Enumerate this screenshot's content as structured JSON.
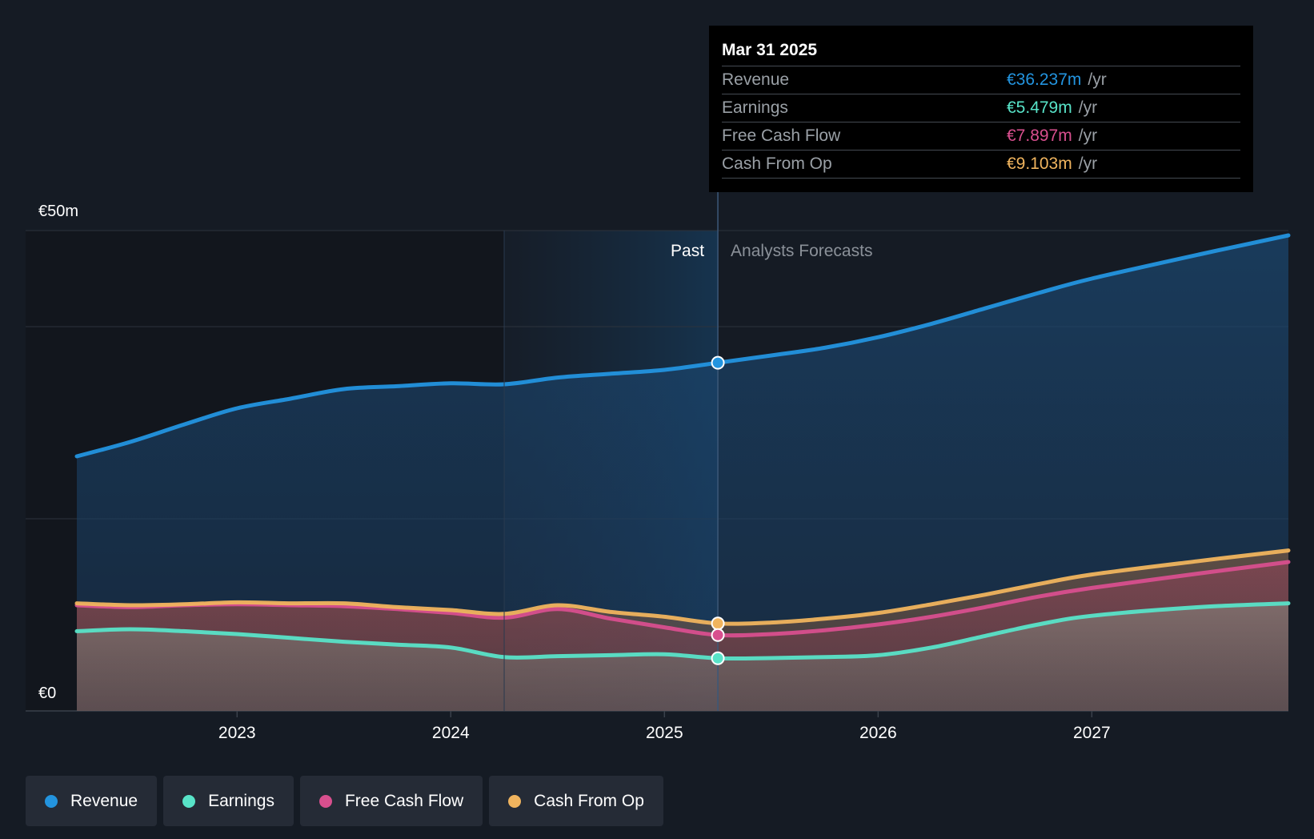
{
  "tooltip": {
    "date": "Mar 31 2025",
    "rows": [
      {
        "label": "Revenue",
        "value": "€36.237m",
        "unit": "/yr",
        "color": "#2394df"
      },
      {
        "label": "Earnings",
        "value": "€5.479m",
        "unit": "/yr",
        "color": "#58e3c8"
      },
      {
        "label": "Free Cash Flow",
        "value": "€7.897m",
        "unit": "/yr",
        "color": "#d84f8e"
      },
      {
        "label": "Cash From Op",
        "value": "€9.103m",
        "unit": "/yr",
        "color": "#f0b45e"
      }
    ]
  },
  "legend": [
    {
      "label": "Revenue",
      "color": "#2394df"
    },
    {
      "label": "Earnings",
      "color": "#58e3c8"
    },
    {
      "label": "Free Cash Flow",
      "color": "#d84f8e"
    },
    {
      "label": "Cash From Op",
      "color": "#f0b45e"
    }
  ],
  "chart_data": {
    "type": "area",
    "y_labels": {
      "top": "€50m",
      "bottom": "€0"
    },
    "ylim": [
      0,
      50
    ],
    "xlim": [
      2022.25,
      2027.92
    ],
    "x_ticks": [
      2023,
      2024,
      2025,
      2026,
      2027
    ],
    "x_tick_labels": [
      "2023",
      "2024",
      "2025",
      "2026",
      "2027"
    ],
    "past_label": "Past",
    "forecast_label": "Analysts Forecasts",
    "past_start": 2024.25,
    "divider_x": 2025.25,
    "series": [
      {
        "name": "Revenue",
        "color": "#2394df",
        "points": [
          [
            2022.25,
            26.5
          ],
          [
            2022.5,
            28
          ],
          [
            2022.75,
            29.8
          ],
          [
            2023.0,
            31.5
          ],
          [
            2023.25,
            32.5
          ],
          [
            2023.5,
            33.5
          ],
          [
            2023.75,
            33.8
          ],
          [
            2024.0,
            34.1
          ],
          [
            2024.25,
            34.0
          ],
          [
            2024.5,
            34.7
          ],
          [
            2024.75,
            35.1
          ],
          [
            2025.0,
            35.5
          ],
          [
            2025.25,
            36.237
          ],
          [
            2025.5,
            37.0
          ],
          [
            2025.75,
            37.8
          ],
          [
            2026.0,
            38.9
          ],
          [
            2026.25,
            40.3
          ],
          [
            2026.5,
            41.9
          ],
          [
            2026.75,
            43.5
          ],
          [
            2027.0,
            45.0
          ],
          [
            2027.5,
            47.5
          ],
          [
            2027.92,
            49.5
          ]
        ]
      },
      {
        "name": "Cash From Op",
        "color": "#f0b45e",
        "points": [
          [
            2022.25,
            11.2
          ],
          [
            2022.5,
            11.0
          ],
          [
            2022.75,
            11.1
          ],
          [
            2023.0,
            11.3
          ],
          [
            2023.25,
            11.2
          ],
          [
            2023.5,
            11.2
          ],
          [
            2023.75,
            10.8
          ],
          [
            2024.0,
            10.5
          ],
          [
            2024.25,
            10.1
          ],
          [
            2024.5,
            11.0
          ],
          [
            2024.75,
            10.3
          ],
          [
            2025.0,
            9.8
          ],
          [
            2025.25,
            9.103
          ],
          [
            2025.5,
            9.2
          ],
          [
            2025.75,
            9.6
          ],
          [
            2026.0,
            10.2
          ],
          [
            2026.25,
            11.1
          ],
          [
            2026.5,
            12.1
          ],
          [
            2026.75,
            13.2
          ],
          [
            2027.0,
            14.2
          ],
          [
            2027.5,
            15.6
          ],
          [
            2027.92,
            16.7
          ]
        ]
      },
      {
        "name": "Free Cash Flow",
        "color": "#d84f8e",
        "points": [
          [
            2022.25,
            11.0
          ],
          [
            2022.5,
            10.8
          ],
          [
            2022.75,
            11.0
          ],
          [
            2023.0,
            11.1
          ],
          [
            2023.25,
            11.0
          ],
          [
            2023.5,
            10.9
          ],
          [
            2023.75,
            10.6
          ],
          [
            2024.0,
            10.2
          ],
          [
            2024.25,
            9.7
          ],
          [
            2024.5,
            10.6
          ],
          [
            2024.75,
            9.6
          ],
          [
            2025.0,
            8.7
          ],
          [
            2025.25,
            7.897
          ],
          [
            2025.5,
            8.0
          ],
          [
            2025.75,
            8.4
          ],
          [
            2026.0,
            9.0
          ],
          [
            2026.25,
            9.8
          ],
          [
            2026.5,
            10.8
          ],
          [
            2026.75,
            11.9
          ],
          [
            2027.0,
            12.8
          ],
          [
            2027.5,
            14.3
          ],
          [
            2027.92,
            15.5
          ]
        ]
      },
      {
        "name": "Earnings",
        "color": "#58e3c8",
        "points": [
          [
            2022.25,
            8.3
          ],
          [
            2022.5,
            8.5
          ],
          [
            2022.75,
            8.3
          ],
          [
            2023.0,
            8.0
          ],
          [
            2023.25,
            7.6
          ],
          [
            2023.5,
            7.2
          ],
          [
            2023.75,
            6.9
          ],
          [
            2024.0,
            6.6
          ],
          [
            2024.25,
            5.6
          ],
          [
            2024.5,
            5.7
          ],
          [
            2024.75,
            5.8
          ],
          [
            2025.0,
            5.9
          ],
          [
            2025.25,
            5.479
          ],
          [
            2025.5,
            5.5
          ],
          [
            2025.75,
            5.6
          ],
          [
            2026.0,
            5.8
          ],
          [
            2026.25,
            6.6
          ],
          [
            2026.5,
            7.8
          ],
          [
            2026.75,
            9.0
          ],
          [
            2027.0,
            9.9
          ],
          [
            2027.5,
            10.8
          ],
          [
            2027.92,
            11.2
          ]
        ]
      }
    ],
    "highlight_x": 2025.25
  }
}
